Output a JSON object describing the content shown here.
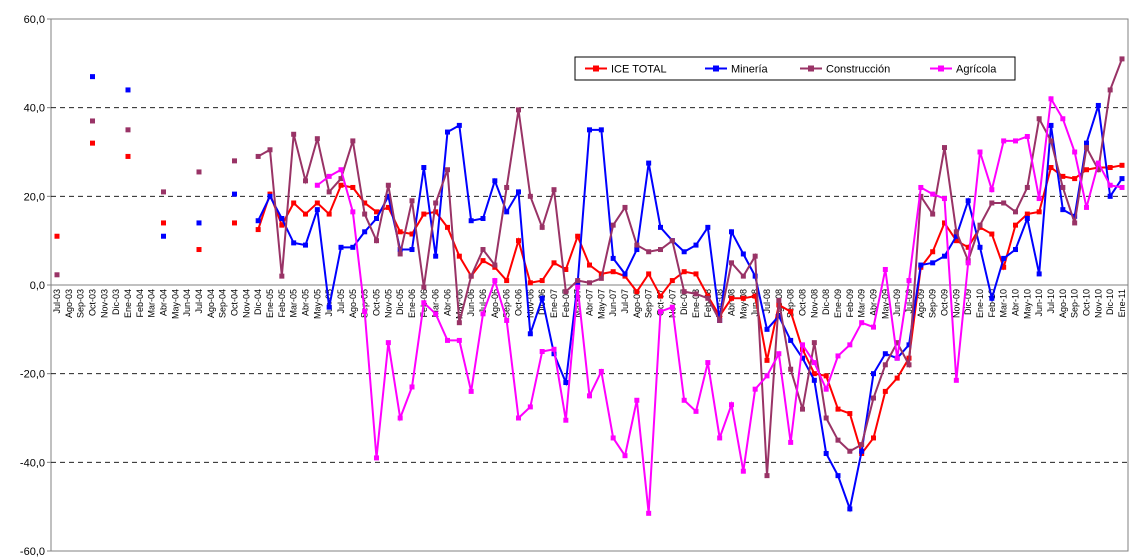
{
  "chart_data": {
    "type": "line",
    "categories": [
      "Jul-03",
      "Ago-03",
      "Sep-03",
      "Oct-03",
      "Nov-03",
      "Dic-03",
      "Ene-04",
      "Feb-04",
      "Mar-04",
      "Abr-04",
      "May-04",
      "Jun-04",
      "Jul-04",
      "Ago-04",
      "Sep-04",
      "Oct-04",
      "Nov-04",
      "Dic-04",
      "Ene-05",
      "Feb-05",
      "Mar-05",
      "Abr-05",
      "May-05",
      "Jun-05",
      "Jul-05",
      "Ago-05",
      "Sep-05",
      "Oct-05",
      "Nov-05",
      "Dic-05",
      "Ene-06",
      "Feb-06",
      "Mar-06",
      "Abr-06",
      "May-06",
      "Jun-06",
      "Jul-06",
      "Ago-06",
      "Sep-06",
      "Oct-06",
      "Nov-06",
      "Dic-06",
      "Ene-07",
      "Feb-07",
      "Mar-07",
      "Abr-07",
      "May-07",
      "Jun-07",
      "Jul-07",
      "Ago-07",
      "Sep-07",
      "Oct-07",
      "Nov-07",
      "Dic-07",
      "Ene-08",
      "Feb-08",
      "Mar-08",
      "Abr-08",
      "May-08",
      "Jun-08",
      "Jul-08",
      "Ago-08",
      "Sep-08",
      "Oct-08",
      "Nov-08",
      "Dic-08",
      "Ene-09",
      "Feb-09",
      "Mar-09",
      "Abr-09",
      "May-09",
      "Jun-09",
      "Jul-09",
      "Ago-09",
      "Sep-09",
      "Oct-09",
      "Nov-09",
      "Dic-09",
      "Ene-10",
      "Feb-10",
      "Mar-10",
      "Abr-10",
      "May-10",
      "Jun-10",
      "Jul-10",
      "Ago-10",
      "Sep-10",
      "Oct-10",
      "Nov-10",
      "Dic-10",
      "Ene-11"
    ],
    "series": [
      {
        "name": "ICE TOTAL",
        "color": "#ff0000",
        "values": [
          11,
          null,
          null,
          32,
          null,
          null,
          29,
          null,
          null,
          14,
          null,
          null,
          8,
          null,
          null,
          14,
          null,
          12.5,
          20.5,
          13.5,
          18.5,
          16,
          18.5,
          16,
          22.5,
          22,
          18.5,
          16.5,
          17.5,
          12,
          11.5,
          16,
          16.5,
          13,
          6.5,
          2,
          5.5,
          4,
          1,
          10,
          0.5,
          1,
          5,
          3.5,
          11,
          4.5,
          2.5,
          3,
          2,
          -1.5,
          2.5,
          -2.5,
          1,
          3,
          2.5,
          -2.5,
          -7,
          -3,
          -3,
          -2.5,
          -17,
          -4.5,
          -6,
          -14.5,
          -20,
          -20.5,
          -28,
          -29,
          -38,
          -34.5,
          -24,
          -21,
          -16.5,
          4,
          7.5,
          14,
          10,
          8.5,
          13,
          11.5,
          4,
          13.5,
          16,
          16.5,
          26.5,
          24.5,
          24,
          26,
          26.5,
          26.5,
          27
        ]
      },
      {
        "name": "Minería",
        "color": "#0000ff",
        "values": [
          null,
          null,
          null,
          47,
          null,
          null,
          44,
          null,
          null,
          11,
          null,
          null,
          14,
          null,
          null,
          20.5,
          null,
          14.5,
          20,
          15,
          9.5,
          9,
          17,
          -5,
          8.5,
          8.5,
          12,
          15,
          20,
          8,
          8,
          26.5,
          6.5,
          34.5,
          36,
          14.5,
          15,
          23.5,
          16.5,
          21,
          -11,
          -3,
          -15.5,
          -22,
          0.5,
          35,
          35,
          6,
          2.5,
          8,
          27.5,
          13,
          10,
          7.5,
          9,
          13,
          -8,
          12,
          7,
          2,
          -10,
          -7,
          -12.5,
          -16.5,
          -21.5,
          -38,
          -43,
          -50.5,
          -37.5,
          -20,
          -15.5,
          -16.5,
          -13.5,
          4.5,
          5,
          6.5,
          11,
          19,
          8.5,
          -3,
          6,
          8,
          15,
          2.5,
          36,
          17,
          15.5,
          32,
          40.5,
          20,
          24
        ]
      },
      {
        "name": "Construcción",
        "color": "#993366",
        "values": [
          2.3,
          null,
          null,
          37,
          null,
          null,
          35,
          null,
          null,
          21,
          null,
          null,
          25.5,
          null,
          null,
          28,
          null,
          29,
          30.5,
          2,
          34,
          23.5,
          33,
          21,
          24,
          32.5,
          16,
          10,
          22.5,
          7,
          19,
          -0.5,
          18.5,
          26,
          -8.5,
          2,
          8,
          4.5,
          22,
          39.5,
          20,
          13,
          21.5,
          -1.5,
          1,
          0.5,
          1.5,
          13.5,
          17.5,
          9,
          7.5,
          8,
          10,
          -1.5,
          -2,
          -3,
          -8,
          5,
          2,
          6.5,
          -43,
          -3.5,
          -19,
          -28,
          -13,
          -30,
          -35,
          -37.5,
          -36,
          -25.5,
          -18,
          -13,
          -18,
          20,
          16,
          31,
          12,
          5.5,
          13.5,
          18.5,
          18.5,
          16.5,
          22,
          37.5,
          32.5,
          22,
          14,
          31,
          26,
          44,
          51
        ]
      },
      {
        "name": "Agrícola",
        "color": "#ff00ff",
        "values": [
          null,
          null,
          null,
          null,
          null,
          null,
          null,
          null,
          null,
          null,
          null,
          null,
          null,
          null,
          null,
          null,
          null,
          null,
          null,
          null,
          null,
          null,
          22.5,
          24.5,
          26,
          16.5,
          -6,
          -39,
          -13,
          -30,
          -23,
          -4,
          -6.5,
          -12.5,
          -12.5,
          -24,
          -6.5,
          1,
          -8,
          -30,
          -27.5,
          -15,
          -14.5,
          -30.5,
          -0.5,
          -25,
          -19.5,
          -34.5,
          -38.5,
          -26,
          -51.5,
          -6,
          -5,
          -26,
          -28.5,
          -17.5,
          -34.5,
          -27,
          -42,
          -23.5,
          -20.5,
          -15.5,
          -35.5,
          -13.5,
          -17.5,
          -23.5,
          -16,
          -13.5,
          -8.5,
          -9.5,
          3.5,
          -16.5,
          1,
          22,
          20.5,
          19.5,
          -21.5,
          5,
          30,
          21.5,
          32.5,
          32.5,
          33.5,
          19.5,
          42,
          37.5,
          30,
          17.5,
          27.5,
          22.5,
          22
        ]
      }
    ],
    "ylim": [
      -60,
      60
    ],
    "yticks": [
      {
        "value": -60,
        "label": "-60,0"
      },
      {
        "value": -40,
        "label": "-40,0"
      },
      {
        "value": -20,
        "label": "-20,0"
      },
      {
        "value": 0,
        "label": "0,0"
      },
      {
        "value": 20,
        "label": "20,0"
      },
      {
        "value": 40,
        "label": "40,0"
      },
      {
        "value": 60,
        "label": "60,0"
      }
    ],
    "grid": true,
    "legend": "top-right"
  }
}
